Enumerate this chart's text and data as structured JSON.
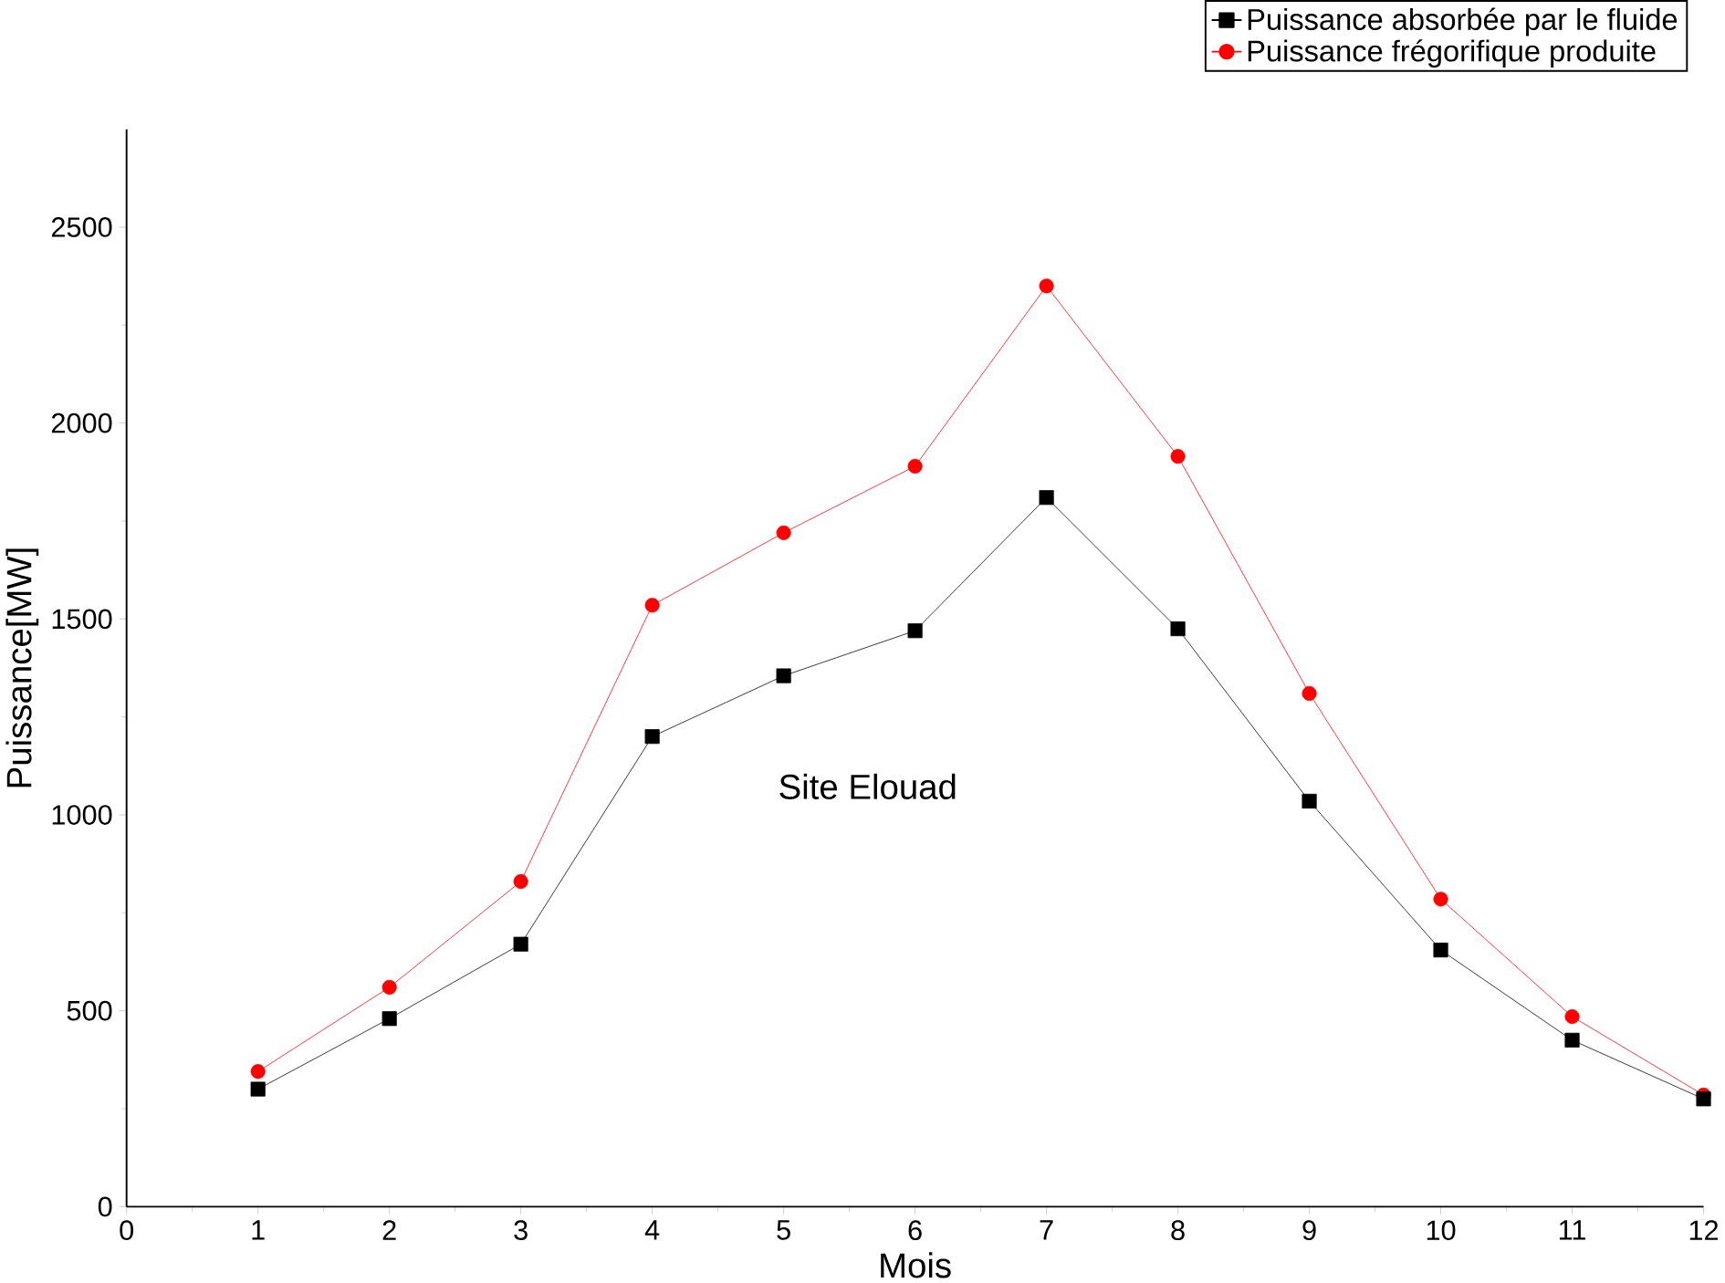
{
  "chart_data": {
    "type": "line",
    "xlabel": "Mois",
    "ylabel": "Puissance[MW]",
    "annotations": [
      "Site Elouad"
    ],
    "x": [
      1,
      2,
      3,
      4,
      5,
      6,
      7,
      8,
      9,
      10,
      11,
      12
    ],
    "series": [
      {
        "name": "Puissance absorbée par le fluide",
        "color": "#000000",
        "marker": "square",
        "values": [
          300,
          480,
          670,
          1200,
          1355,
          1470,
          1810,
          1475,
          1035,
          655,
          425,
          275
        ]
      },
      {
        "name": "Puissance frégorifique produite",
        "color": "#ff0000",
        "marker": "circle",
        "values": [
          345,
          560,
          830,
          1535,
          1720,
          1890,
          2350,
          1915,
          1310,
          785,
          485,
          285
        ]
      }
    ],
    "xlim": [
      0,
      12
    ],
    "ylim": [
      0,
      2750
    ],
    "xticks": [
      0,
      1,
      2,
      3,
      4,
      5,
      6,
      7,
      8,
      9,
      10,
      11,
      12
    ],
    "yticks": [
      0,
      500,
      1000,
      1500,
      2000,
      2500
    ],
    "grid": false,
    "legend": "top right",
    "line_style": "solid"
  }
}
